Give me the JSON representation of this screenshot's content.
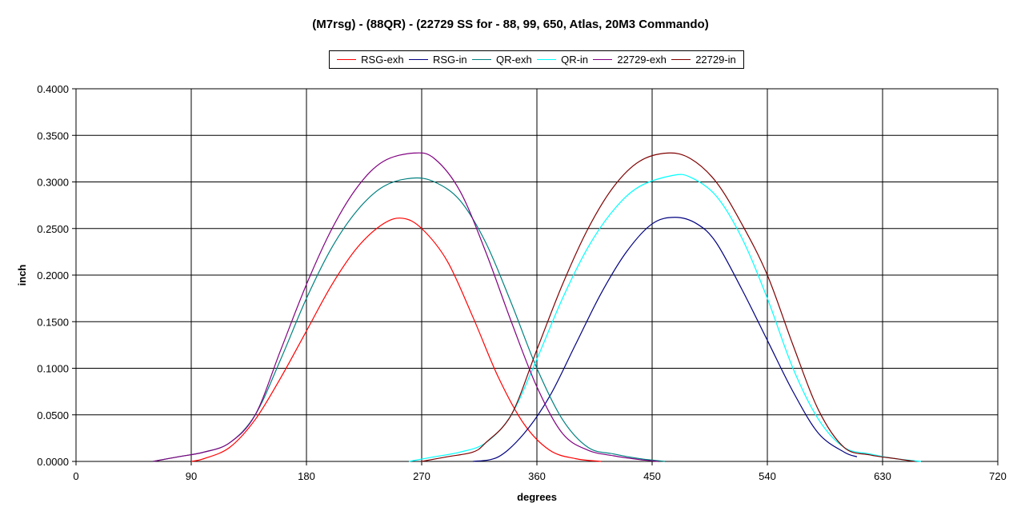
{
  "chart_data": {
    "type": "line",
    "title": "(M7rsg) - (88QR) - (22729 SS for - 88, 99, 650, Atlas, 20M3 Commando)",
    "xlabel": "degrees",
    "ylabel": "inch",
    "xlim": [
      0,
      720
    ],
    "ylim": [
      0,
      0.4
    ],
    "x_ticks": [
      "0",
      "90",
      "180",
      "270",
      "360",
      "450",
      "540",
      "630",
      "720"
    ],
    "y_ticks": [
      "0.0000",
      "0.0500",
      "0.1000",
      "0.1500",
      "0.2000",
      "0.2500",
      "0.3000",
      "0.3500",
      "0.4000"
    ],
    "grid": true,
    "legend_position": "top",
    "series": [
      {
        "name": "RSG-exh",
        "color": "#ff0000",
        "x": [
          90,
          100,
          120,
          140,
          160,
          180,
          200,
          220,
          240,
          255,
          270,
          290,
          310,
          330,
          350,
          370,
          390,
          410
        ],
        "y": [
          0.0,
          0.003,
          0.015,
          0.045,
          0.09,
          0.14,
          0.19,
          0.23,
          0.255,
          0.261,
          0.25,
          0.215,
          0.155,
          0.09,
          0.04,
          0.012,
          0.003,
          0.0
        ]
      },
      {
        "name": "RSG-in",
        "color": "#000080",
        "x": [
          310,
          330,
          350,
          370,
          390,
          410,
          430,
          450,
          468,
          485,
          500,
          520,
          540,
          560,
          580,
          600,
          610
        ],
        "y": [
          0.0,
          0.005,
          0.03,
          0.07,
          0.125,
          0.18,
          0.225,
          0.255,
          0.262,
          0.255,
          0.235,
          0.185,
          0.13,
          0.075,
          0.03,
          0.01,
          0.005
        ]
      },
      {
        "name": "QR-exh",
        "color": "#008080",
        "x": [
          60,
          80,
          100,
          120,
          140,
          160,
          180,
          200,
          220,
          240,
          262,
          280,
          300,
          320,
          340,
          360,
          380,
          400,
          420,
          440,
          460
        ],
        "y": [
          0.0,
          0.005,
          0.01,
          0.02,
          0.05,
          0.11,
          0.175,
          0.23,
          0.27,
          0.295,
          0.304,
          0.3,
          0.28,
          0.235,
          0.17,
          0.1,
          0.045,
          0.015,
          0.008,
          0.003,
          0.0
        ]
      },
      {
        "name": "QR-in",
        "color": "#00ffff",
        "x": [
          260,
          280,
          300,
          320,
          340,
          360,
          380,
          400,
          420,
          440,
          466,
          480,
          500,
          520,
          540,
          560,
          580,
          600,
          620,
          640,
          660
        ],
        "y": [
          0.0,
          0.005,
          0.01,
          0.02,
          0.05,
          0.11,
          0.175,
          0.23,
          0.27,
          0.295,
          0.307,
          0.305,
          0.285,
          0.24,
          0.175,
          0.1,
          0.045,
          0.015,
          0.008,
          0.003,
          0.0
        ]
      },
      {
        "name": "22729-exh",
        "color": "#800080",
        "x": [
          60,
          80,
          100,
          120,
          140,
          160,
          180,
          200,
          220,
          240,
          264,
          280,
          300,
          320,
          340,
          360,
          380,
          400,
          420,
          440,
          455
        ],
        "y": [
          0.0,
          0.005,
          0.01,
          0.02,
          0.05,
          0.12,
          0.19,
          0.25,
          0.295,
          0.322,
          0.331,
          0.325,
          0.29,
          0.225,
          0.15,
          0.08,
          0.03,
          0.012,
          0.006,
          0.002,
          0.0
        ]
      },
      {
        "name": "22729-in",
        "color": "#800000",
        "x": [
          270,
          290,
          310,
          320,
          340,
          360,
          380,
          400,
          420,
          440,
          462,
          480,
          500,
          520,
          540,
          560,
          580,
          600,
          620,
          640,
          655
        ],
        "y": [
          0.0,
          0.005,
          0.01,
          0.02,
          0.05,
          0.12,
          0.19,
          0.25,
          0.295,
          0.322,
          0.331,
          0.325,
          0.3,
          0.255,
          0.2,
          0.125,
          0.055,
          0.015,
          0.007,
          0.003,
          0.0
        ]
      }
    ]
  }
}
